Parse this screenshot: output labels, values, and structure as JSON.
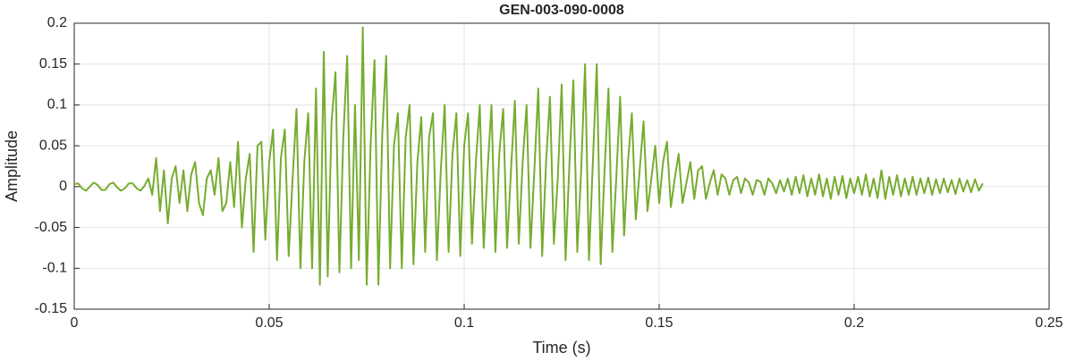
{
  "chart_data": {
    "type": "line",
    "title": "GEN-003-090-0008",
    "x_label": "Time (s)",
    "y_label": "Amplitude",
    "xlim": [
      0,
      0.25
    ],
    "xticks": [
      0,
      0.05,
      0.1,
      0.15,
      0.2,
      0.25
    ],
    "ylim": [
      -0.15,
      0.2
    ],
    "yticks": [
      -0.15,
      -0.1,
      -0.05,
      0,
      0.05,
      0.1,
      0.15,
      0.2
    ],
    "grid": true,
    "x": [
      0,
      0.001,
      0.002,
      0.003,
      0.004,
      0.005,
      0.006,
      0.007,
      0.008,
      0.009,
      0.01,
      0.011,
      0.012,
      0.013,
      0.014,
      0.015,
      0.016,
      0.017,
      0.018,
      0.019,
      0.02,
      0.021,
      0.022,
      0.023,
      0.024,
      0.025,
      0.026,
      0.027,
      0.028,
      0.029,
      0.03,
      0.031,
      0.032,
      0.033,
      0.034,
      0.035,
      0.036,
      0.037,
      0.038,
      0.039,
      0.04,
      0.041,
      0.042,
      0.043,
      0.044,
      0.045,
      0.046,
      0.047,
      0.048,
      0.049,
      0.05,
      0.051,
      0.052,
      0.053,
      0.054,
      0.055,
      0.056,
      0.057,
      0.058,
      0.059,
      0.06,
      0.061,
      0.062,
      0.063,
      0.064,
      0.065,
      0.066,
      0.067,
      0.068,
      0.069,
      0.07,
      0.071,
      0.072,
      0.073,
      0.074,
      0.075,
      0.076,
      0.077,
      0.078,
      0.079,
      0.08,
      0.081,
      0.082,
      0.083,
      0.084,
      0.085,
      0.086,
      0.087,
      0.088,
      0.089,
      0.09,
      0.091,
      0.092,
      0.093,
      0.094,
      0.095,
      0.096,
      0.097,
      0.098,
      0.099,
      0.1,
      0.101,
      0.102,
      0.103,
      0.104,
      0.105,
      0.106,
      0.107,
      0.108,
      0.109,
      0.11,
      0.111,
      0.112,
      0.113,
      0.114,
      0.115,
      0.116,
      0.117,
      0.118,
      0.119,
      0.12,
      0.121,
      0.122,
      0.123,
      0.124,
      0.125,
      0.126,
      0.127,
      0.128,
      0.129,
      0.13,
      0.131,
      0.132,
      0.133,
      0.134,
      0.135,
      0.136,
      0.137,
      0.138,
      0.139,
      0.14,
      0.141,
      0.142,
      0.143,
      0.144,
      0.145,
      0.146,
      0.147,
      0.148,
      0.149,
      0.15,
      0.151,
      0.152,
      0.153,
      0.154,
      0.155,
      0.156,
      0.157,
      0.158,
      0.159,
      0.16,
      0.161,
      0.162,
      0.163,
      0.164,
      0.165,
      0.166,
      0.167,
      0.168,
      0.169,
      0.17,
      0.171,
      0.172,
      0.173,
      0.174,
      0.175,
      0.176,
      0.177,
      0.178,
      0.179,
      0.18,
      0.181,
      0.182,
      0.183,
      0.184,
      0.185,
      0.186,
      0.187,
      0.188,
      0.189,
      0.19,
      0.191,
      0.192,
      0.193,
      0.194,
      0.195,
      0.196,
      0.197,
      0.198,
      0.199,
      0.2,
      0.201,
      0.202,
      0.203,
      0.204,
      0.205,
      0.206,
      0.207,
      0.208,
      0.209,
      0.21,
      0.211,
      0.212,
      0.213,
      0.214,
      0.215,
      0.216,
      0.217,
      0.218,
      0.219,
      0.22,
      0.221,
      0.222,
      0.223,
      0.224,
      0.225,
      0.226,
      0.227,
      0.228,
      0.229,
      0.23,
      0.231,
      0.232,
      0.233
    ],
    "series": [
      {
        "color": "#77ac30",
        "values": [
          0.003,
          0.004,
          -0.002,
          -0.005,
          0,
          0.005,
          0.002,
          -0.004,
          -0.004,
          0.003,
          0.005,
          -0.001,
          -0.005,
          -0.002,
          0.004,
          0.004,
          -0.002,
          -0.005,
          0.001,
          0.01,
          -0.01,
          0.035,
          -0.03,
          0.02,
          -0.045,
          0.01,
          0.025,
          -0.02,
          0.02,
          -0.03,
          0.015,
          0.03,
          -0.02,
          -0.035,
          0.01,
          0.02,
          -0.01,
          0.035,
          -0.03,
          -0.02,
          0.03,
          -0.025,
          0.055,
          -0.05,
          0.01,
          0.04,
          -0.08,
          0.05,
          0.055,
          -0.065,
          0.03,
          0.07,
          -0.09,
          0.035,
          0.07,
          -0.085,
          0.01,
          0.095,
          -0.1,
          0.03,
          0.09,
          -0.1,
          0.12,
          -0.12,
          0.165,
          -0.11,
          0.08,
          0.14,
          -0.105,
          0.06,
          0.16,
          -0.1,
          0.1,
          -0.09,
          0.195,
          -0.12,
          0.05,
          0.155,
          -0.12,
          0.065,
          0.16,
          -0.1,
          0.05,
          0.09,
          -0.1,
          0.06,
          0.1,
          -0.095,
          0.03,
          0.085,
          -0.08,
          0.06,
          0.09,
          -0.09,
          0.02,
          0.1,
          -0.08,
          0.04,
          0.09,
          -0.085,
          0.05,
          0.09,
          -0.07,
          0.03,
          0.1,
          -0.075,
          0.02,
          0.1,
          -0.08,
          0.04,
          0.095,
          -0.075,
          0.02,
          0.105,
          -0.07,
          0.03,
          0.1,
          -0.075,
          0.02,
          0.12,
          -0.085,
          0.03,
          0.11,
          -0.07,
          0.01,
          0.125,
          -0.09,
          0.03,
          0.13,
          -0.08,
          0.02,
          0.15,
          -0.09,
          0.03,
          0.15,
          -0.095,
          0.02,
          0.12,
          -0.08,
          0.01,
          0.11,
          -0.06,
          0.03,
          0.09,
          -0.04,
          0.02,
          0.08,
          -0.03,
          0.01,
          0.05,
          -0.02,
          0.03,
          0.055,
          -0.025,
          0.01,
          0.04,
          -0.02,
          0.005,
          0.03,
          -0.015,
          0.02,
          0.025,
          -0.015,
          0.005,
          0.02,
          -0.01,
          0.015,
          0.01,
          -0.01,
          0.008,
          0.012,
          -0.008,
          0.01,
          0.005,
          -0.01,
          0.008,
          0.006,
          -0.01,
          0.01,
          0.004,
          -0.008,
          0.008,
          -0.006,
          0.01,
          -0.01,
          0.012,
          -0.008,
          0.014,
          -0.012,
          0.01,
          -0.01,
          0.015,
          -0.012,
          0.01,
          -0.015,
          0.012,
          -0.01,
          0.013,
          -0.014,
          0.01,
          -0.008,
          0.012,
          -0.01,
          0.015,
          -0.012,
          0.01,
          -0.014,
          0.02,
          -0.015,
          0.012,
          -0.01,
          0.014,
          -0.012,
          0.01,
          -0.01,
          0.012,
          -0.01,
          0.01,
          -0.008,
          0.011,
          -0.01,
          0.009,
          -0.008,
          0.01,
          -0.007,
          0.008,
          -0.009,
          0.01,
          -0.006,
          0.008,
          -0.007,
          0.009,
          -0.005,
          0.004
        ]
      }
    ]
  }
}
